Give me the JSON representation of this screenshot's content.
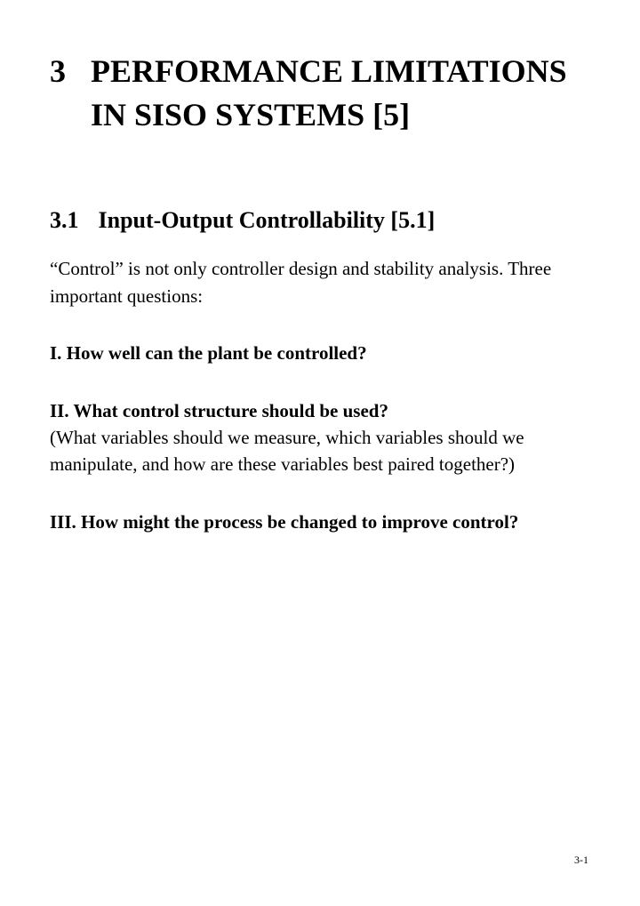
{
  "chapter": {
    "number": "3",
    "title": "PERFORMANCE LIMITATIONS IN SISO SYSTEMS [5]"
  },
  "section": {
    "number": "3.1",
    "title": "Input-Output Controllability [5.1]"
  },
  "intro": "“Control” is not only controller design and stability analysis. Three important questions:",
  "questions": {
    "q1": {
      "title": "I. How well can the plant be controlled?"
    },
    "q2": {
      "title": "II. What control structure should be used?",
      "body": "(What variables should we measure, which variables should we manipulate, and how are these variables best paired together?)"
    },
    "q3": {
      "title": "III. How might the process be changed to improve control?"
    }
  },
  "page_number": "3-1"
}
